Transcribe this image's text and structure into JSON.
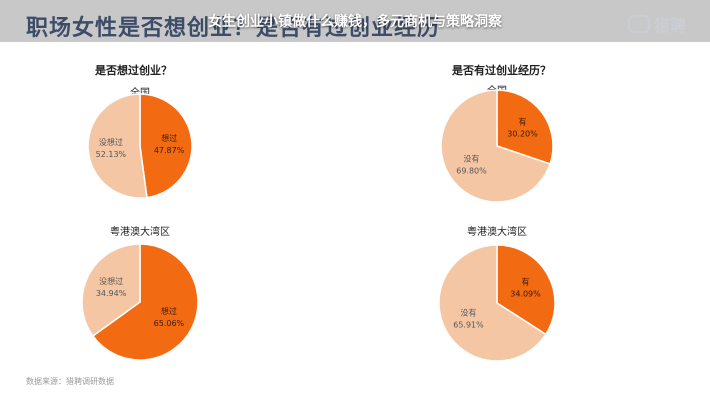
{
  "overlay_title": "女生创业小镇做什么赚钱，多元商机与策略洞察",
  "background_title": "职场女性是否想创业？是否有过创业经历",
  "logo": {
    "icon_text": "猎聘",
    "text": "猎聘"
  },
  "source": "数据来源：猎聘调研数据",
  "colors": {
    "highlight": "#f26b12",
    "base": "#f5c6a4",
    "border": "#ffffff"
  },
  "questions": {
    "left": "是否想过创业？",
    "right": "是否有过创业经历？"
  },
  "chart_data": [
    {
      "type": "pie",
      "title": "全国",
      "group": "是否想过创业？",
      "slices": [
        {
          "label": "想过",
          "value": 47.87,
          "display": "47.87%",
          "highlight": true
        },
        {
          "label": "没想过",
          "value": 52.13,
          "display": "52.13%",
          "highlight": false
        }
      ]
    },
    {
      "type": "pie",
      "title": "粤港澳大湾区",
      "group": "是否想过创业？",
      "slices": [
        {
          "label": "想过",
          "value": 65.06,
          "display": "65.06%",
          "highlight": true
        },
        {
          "label": "没想过",
          "value": 34.94,
          "display": "34.94%",
          "highlight": false
        }
      ]
    },
    {
      "type": "pie",
      "title": "全国",
      "group": "是否有过创业经历？",
      "slices": [
        {
          "label": "有",
          "value": 30.2,
          "display": "30.20%",
          "highlight": true
        },
        {
          "label": "没有",
          "value": 69.8,
          "display": "69.80%",
          "highlight": false
        }
      ]
    },
    {
      "type": "pie",
      "title": "粤港澳大湾区",
      "group": "是否有过创业经历？",
      "slices": [
        {
          "label": "有",
          "value": 34.09,
          "display": "34.09%",
          "highlight": true
        },
        {
          "label": "没有",
          "value": 65.91,
          "display": "65.91%",
          "highlight": false
        }
      ]
    }
  ]
}
